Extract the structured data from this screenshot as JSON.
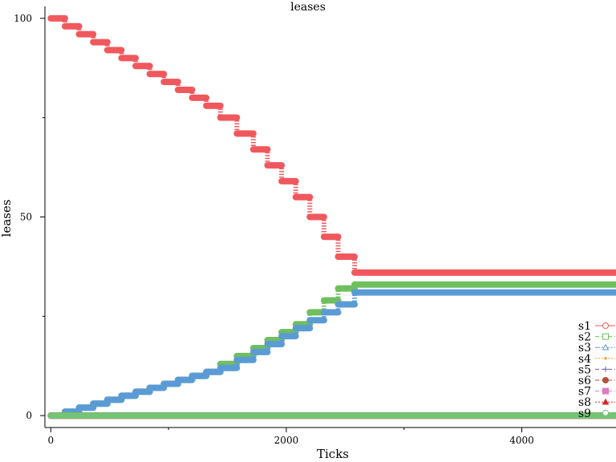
{
  "chart_data": {
    "type": "line",
    "title": "leases",
    "xlabel": "Ticks",
    "ylabel": "leases",
    "xlim": [
      -50,
      4800
    ],
    "ylim": [
      -3,
      103
    ],
    "xticks": [
      0,
      2000,
      4000
    ],
    "xminor": [
      1000,
      3000
    ],
    "yticks": [
      0,
      50,
      100
    ],
    "yminor": [
      25,
      75
    ],
    "grid": false,
    "legend_position": "right",
    "series": [
      {
        "name": "s1",
        "color": "#f0585d",
        "marker": "circle",
        "dash": "solid",
        "points": [
          [
            0,
            100
          ],
          [
            120,
            100
          ],
          [
            120,
            98
          ],
          [
            240,
            98
          ],
          [
            240,
            96
          ],
          [
            360,
            96
          ],
          [
            360,
            94
          ],
          [
            480,
            94
          ],
          [
            480,
            92
          ],
          [
            600,
            92
          ],
          [
            600,
            90
          ],
          [
            720,
            90
          ],
          [
            720,
            88
          ],
          [
            840,
            88
          ],
          [
            840,
            86
          ],
          [
            960,
            86
          ],
          [
            960,
            84
          ],
          [
            1080,
            84
          ],
          [
            1080,
            82
          ],
          [
            1200,
            82
          ],
          [
            1200,
            80
          ],
          [
            1320,
            80
          ],
          [
            1320,
            78
          ],
          [
            1440,
            78
          ],
          [
            1440,
            75
          ],
          [
            1580,
            75
          ],
          [
            1580,
            71
          ],
          [
            1720,
            71
          ],
          [
            1720,
            67
          ],
          [
            1840,
            67
          ],
          [
            1840,
            63
          ],
          [
            1960,
            63
          ],
          [
            1960,
            59
          ],
          [
            2080,
            59
          ],
          [
            2080,
            55
          ],
          [
            2200,
            55
          ],
          [
            2200,
            50
          ],
          [
            2320,
            50
          ],
          [
            2320,
            45
          ],
          [
            2440,
            45
          ],
          [
            2440,
            40
          ],
          [
            2580,
            40
          ],
          [
            2580,
            36
          ],
          [
            4800,
            36
          ]
        ]
      },
      {
        "name": "s2",
        "color": "#6fbf5e",
        "marker": "square",
        "dash": "dash",
        "points": [
          [
            0,
            0
          ],
          [
            120,
            0
          ],
          [
            120,
            1
          ],
          [
            240,
            1
          ],
          [
            240,
            2
          ],
          [
            360,
            2
          ],
          [
            360,
            3
          ],
          [
            480,
            3
          ],
          [
            480,
            4
          ],
          [
            600,
            4
          ],
          [
            600,
            5
          ],
          [
            720,
            5
          ],
          [
            720,
            6
          ],
          [
            840,
            6
          ],
          [
            840,
            7
          ],
          [
            960,
            7
          ],
          [
            960,
            8
          ],
          [
            1080,
            8
          ],
          [
            1080,
            9
          ],
          [
            1200,
            9
          ],
          [
            1200,
            10
          ],
          [
            1320,
            10
          ],
          [
            1320,
            11
          ],
          [
            1440,
            11
          ],
          [
            1440,
            13
          ],
          [
            1580,
            13
          ],
          [
            1580,
            15
          ],
          [
            1720,
            15
          ],
          [
            1720,
            17
          ],
          [
            1840,
            17
          ],
          [
            1840,
            19
          ],
          [
            1960,
            19
          ],
          [
            1960,
            21
          ],
          [
            2080,
            21
          ],
          [
            2080,
            23
          ],
          [
            2200,
            23
          ],
          [
            2200,
            26
          ],
          [
            2320,
            26
          ],
          [
            2320,
            29
          ],
          [
            2440,
            29
          ],
          [
            2440,
            32
          ],
          [
            2580,
            32
          ],
          [
            2580,
            33
          ],
          [
            4800,
            33
          ]
        ]
      },
      {
        "name": "s3",
        "color": "#5b9bd5",
        "marker": "triangle",
        "dash": "dashdot",
        "points": [
          [
            0,
            0
          ],
          [
            120,
            0
          ],
          [
            120,
            1
          ],
          [
            240,
            1
          ],
          [
            240,
            2
          ],
          [
            360,
            2
          ],
          [
            360,
            3
          ],
          [
            480,
            3
          ],
          [
            480,
            4
          ],
          [
            600,
            4
          ],
          [
            600,
            5
          ],
          [
            720,
            5
          ],
          [
            720,
            6
          ],
          [
            840,
            6
          ],
          [
            840,
            7
          ],
          [
            960,
            7
          ],
          [
            960,
            8
          ],
          [
            1080,
            8
          ],
          [
            1080,
            9
          ],
          [
            1200,
            9
          ],
          [
            1200,
            10
          ],
          [
            1320,
            10
          ],
          [
            1320,
            11
          ],
          [
            1440,
            11
          ],
          [
            1440,
            12
          ],
          [
            1580,
            12
          ],
          [
            1580,
            14
          ],
          [
            1720,
            14
          ],
          [
            1720,
            16
          ],
          [
            1840,
            16
          ],
          [
            1840,
            18
          ],
          [
            1960,
            18
          ],
          [
            1960,
            20
          ],
          [
            2080,
            20
          ],
          [
            2080,
            22
          ],
          [
            2200,
            22
          ],
          [
            2200,
            24
          ],
          [
            2320,
            24
          ],
          [
            2320,
            26
          ],
          [
            2440,
            26
          ],
          [
            2440,
            28
          ],
          [
            2580,
            28
          ],
          [
            2580,
            31
          ],
          [
            4800,
            31
          ]
        ]
      },
      {
        "name": "s4",
        "color": "#f4a13a",
        "marker": "dot",
        "dash": "dot",
        "points": [
          [
            0,
            0
          ],
          [
            4800,
            0
          ]
        ]
      },
      {
        "name": "s5",
        "color": "#7a5fa8",
        "marker": "plus",
        "dash": "dash",
        "points": [
          [
            0,
            0
          ],
          [
            4800,
            0
          ]
        ]
      },
      {
        "name": "s6",
        "color": "#b5523b",
        "marker": "filled-circle",
        "dash": "dash",
        "points": [
          [
            0,
            0
          ],
          [
            4800,
            0
          ]
        ]
      },
      {
        "name": "s7",
        "color": "#e377c2",
        "marker": "filled-square",
        "dash": "dash",
        "points": [
          [
            0,
            0
          ],
          [
            4800,
            0
          ]
        ]
      },
      {
        "name": "s8",
        "color": "#d62728",
        "marker": "filled-triangle",
        "dash": "dot",
        "points": [
          [
            0,
            0
          ],
          [
            4800,
            0
          ]
        ]
      },
      {
        "name": "s9",
        "color": "#74c476",
        "marker": "circle",
        "dash": "dot",
        "points": [
          [
            0,
            0
          ],
          [
            4800,
            0
          ]
        ]
      }
    ]
  }
}
